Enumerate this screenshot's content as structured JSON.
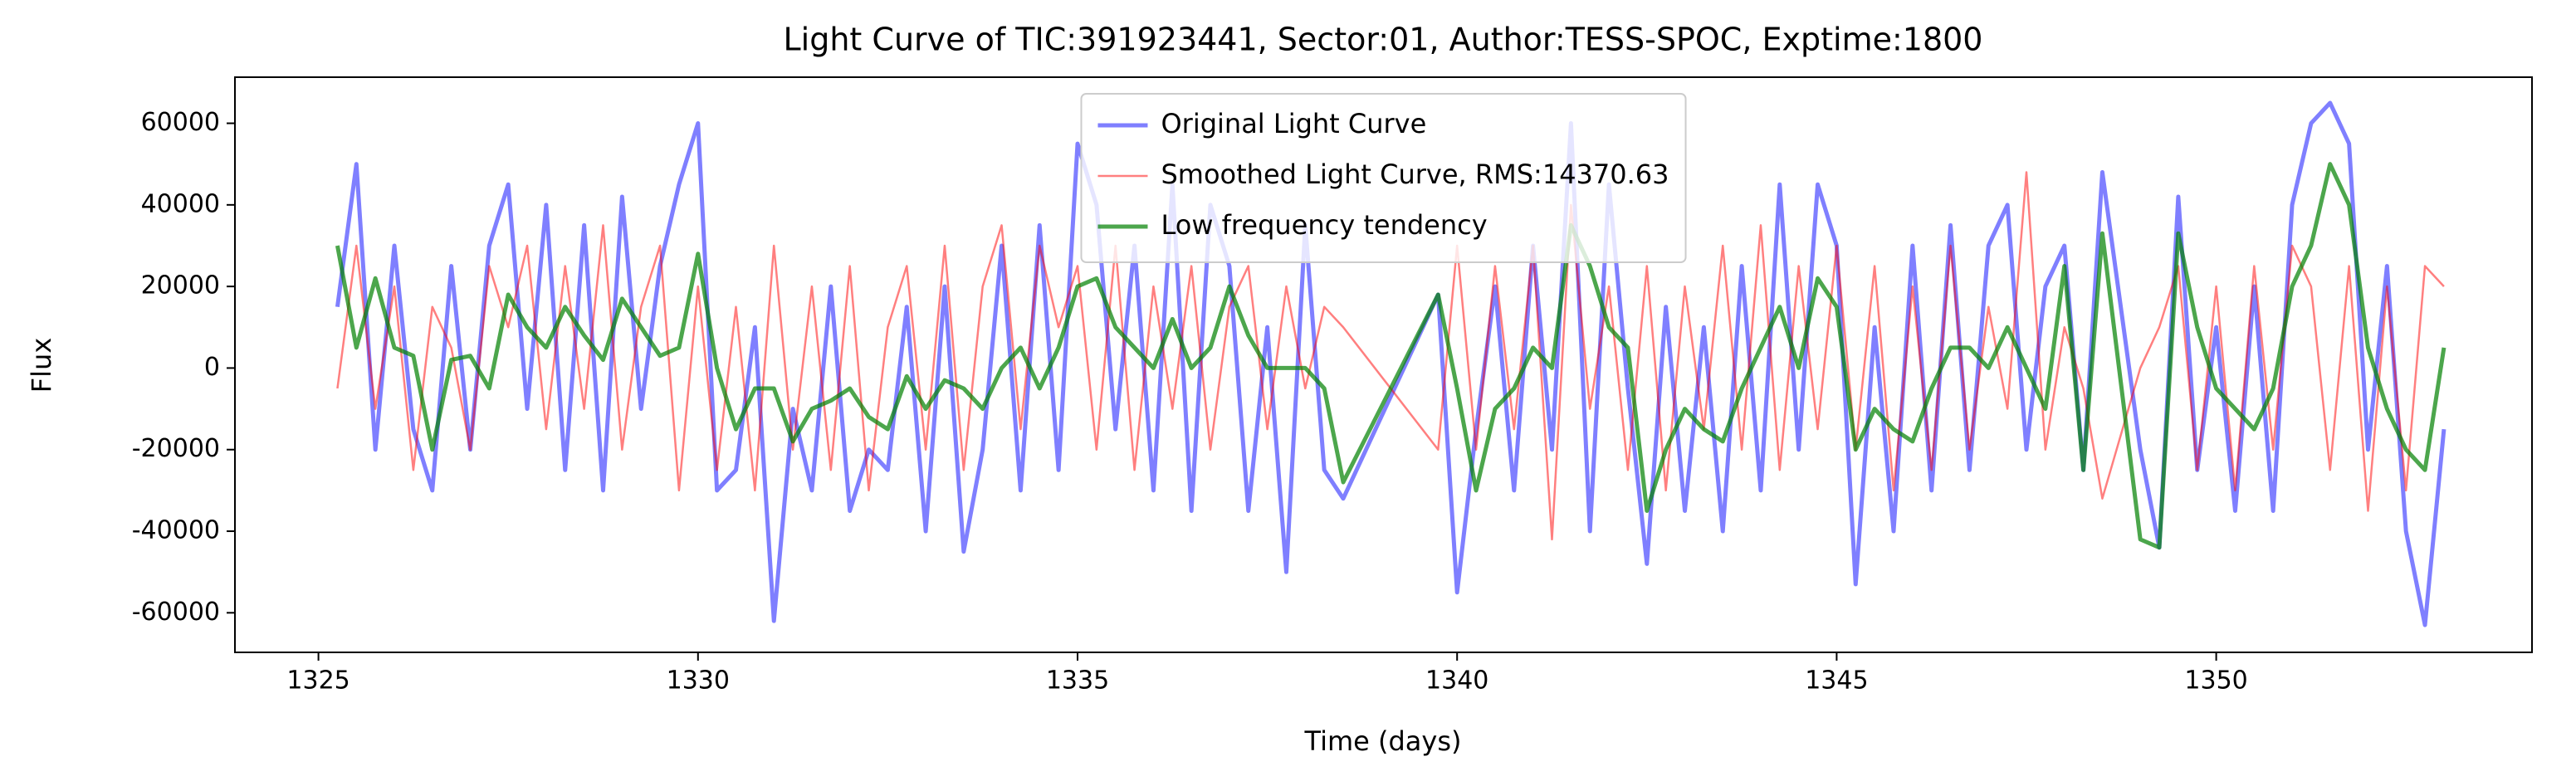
{
  "chart_data": {
    "type": "line",
    "title": "Light Curve of TIC:391923441, Sector:01, Author:TESS-SPOC, Exptime:1800",
    "x_label": "Time (days)",
    "y_label": "Flux",
    "x": [
      1325.25,
      1325.5,
      1325.75,
      1326,
      1326.25,
      1326.5,
      1326.75,
      1327,
      1327.25,
      1327.5,
      1327.75,
      1328,
      1328.25,
      1328.5,
      1328.75,
      1329,
      1329.25,
      1329.5,
      1329.75,
      1330,
      1330.25,
      1330.5,
      1330.75,
      1331,
      1331.25,
      1331.5,
      1331.75,
      1332,
      1332.25,
      1332.5,
      1332.75,
      1333,
      1333.25,
      1333.5,
      1333.75,
      1334,
      1334.25,
      1334.5,
      1334.75,
      1335,
      1335.25,
      1335.5,
      1335.75,
      1336,
      1336.25,
      1336.5,
      1336.75,
      1337,
      1337.25,
      1337.5,
      1337.75,
      1338,
      1338.25,
      1338.5,
      1339.75,
      1340,
      1340.25,
      1340.5,
      1340.75,
      1341,
      1341.25,
      1341.5,
      1341.75,
      1342,
      1342.25,
      1342.5,
      1342.75,
      1343,
      1343.25,
      1343.5,
      1343.75,
      1344,
      1344.25,
      1344.5,
      1344.75,
      1345,
      1345.25,
      1345.5,
      1345.75,
      1346,
      1346.25,
      1346.5,
      1346.75,
      1347,
      1347.25,
      1347.5,
      1347.75,
      1348,
      1348.25,
      1348.5,
      1349,
      1349.25,
      1349.5,
      1349.75,
      1350,
      1350.25,
      1350.5,
      1350.75,
      1351,
      1351.25,
      1351.5,
      1351.75,
      1352,
      1352.25,
      1352.5,
      1352.75,
      1353
    ],
    "series": [
      {
        "name": "Original Light Curve",
        "color": "#0000ff",
        "opacity": 0.5,
        "width": 5,
        "values": [
          15000,
          50000,
          -20000,
          30000,
          -15000,
          -30000,
          25000,
          -20000,
          30000,
          45000,
          -10000,
          40000,
          -25000,
          35000,
          -30000,
          42000,
          -10000,
          25000,
          45000,
          60000,
          -30000,
          -25000,
          10000,
          -62000,
          -10000,
          -30000,
          20000,
          -35000,
          -20000,
          -25000,
          15000,
          -40000,
          20000,
          -45000,
          -20000,
          30000,
          -30000,
          35000,
          -25000,
          55000,
          40000,
          -15000,
          30000,
          -30000,
          45000,
          -35000,
          40000,
          25000,
          -35000,
          10000,
          -50000,
          35000,
          -25000,
          -32000,
          18000,
          -55000,
          -15000,
          20000,
          -30000,
          30000,
          -20000,
          60000,
          -40000,
          45000,
          -5000,
          -48000,
          15000,
          -35000,
          10000,
          -40000,
          25000,
          -30000,
          45000,
          -20000,
          45000,
          30000,
          -53000,
          10000,
          -40000,
          30000,
          -30000,
          35000,
          -25000,
          30000,
          40000,
          -20000,
          20000,
          30000,
          -25000,
          48000,
          -20000,
          -44000,
          42000,
          -25000,
          10000,
          -35000,
          20000,
          -35000,
          40000,
          60000,
          65000,
          55000,
          -20000,
          25000,
          -40000,
          -63000,
          -15000
        ]
      },
      {
        "name": "Smoothed Light Curve, RMS:14370.63",
        "color": "#ff0000",
        "opacity": 0.5,
        "width": 2.5,
        "values": [
          -5000,
          30000,
          -10000,
          20000,
          -25000,
          15000,
          5000,
          -20000,
          25000,
          10000,
          30000,
          -15000,
          25000,
          -10000,
          35000,
          -20000,
          15000,
          30000,
          -30000,
          20000,
          -25000,
          15000,
          -30000,
          30000,
          -20000,
          20000,
          -25000,
          25000,
          -30000,
          10000,
          25000,
          -20000,
          30000,
          -25000,
          20000,
          35000,
          -15000,
          30000,
          10000,
          25000,
          -20000,
          30000,
          -25000,
          20000,
          -10000,
          25000,
          -20000,
          15000,
          25000,
          -15000,
          20000,
          -5000,
          15000,
          10000,
          -20000,
          30000,
          -20000,
          25000,
          -15000,
          30000,
          -42000,
          40000,
          -10000,
          20000,
          -25000,
          25000,
          -30000,
          20000,
          -15000,
          30000,
          -20000,
          35000,
          -25000,
          25000,
          -15000,
          30000,
          -20000,
          25000,
          -30000,
          20000,
          -25000,
          30000,
          -20000,
          15000,
          -10000,
          48000,
          -20000,
          10000,
          -5000,
          -32000,
          0,
          10000,
          25000,
          -25000,
          20000,
          -30000,
          25000,
          -20000,
          30000,
          20000,
          -25000,
          25000,
          -35000,
          20000,
          -30000,
          25000,
          20000
        ]
      },
      {
        "name": "Low frequency tendency",
        "color": "#008000",
        "opacity": 0.7,
        "width": 5,
        "values": [
          30000,
          5000,
          22000,
          5000,
          3000,
          -20000,
          2000,
          3000,
          -5000,
          18000,
          10000,
          5000,
          15000,
          8000,
          2000,
          17000,
          10000,
          3000,
          5000,
          28000,
          0,
          -15000,
          -5000,
          -5000,
          -18000,
          -10000,
          -8000,
          -5000,
          -12000,
          -15000,
          -2000,
          -10000,
          -3000,
          -5000,
          -10000,
          0,
          5000,
          -5000,
          5000,
          20000,
          22000,
          10000,
          5000,
          0,
          12000,
          0,
          5000,
          20000,
          8000,
          0,
          0,
          0,
          -5000,
          -28000,
          18000,
          -5000,
          -30000,
          -10000,
          -5000,
          5000,
          0,
          35000,
          25000,
          10000,
          5000,
          -35000,
          -20000,
          -10000,
          -15000,
          -18000,
          -5000,
          5000,
          15000,
          0,
          22000,
          15000,
          -20000,
          -10000,
          -15000,
          -18000,
          -5000,
          5000,
          5000,
          0,
          10000,
          0,
          -10000,
          25000,
          -25000,
          33000,
          -42000,
          -44000,
          33000,
          10000,
          -5000,
          -10000,
          -15000,
          -5000,
          20000,
          30000,
          50000,
          40000,
          5000,
          -10000,
          -20000,
          -25000,
          5000
        ]
      }
    ],
    "xlim": [
      1323.9,
      1354.16
    ],
    "ylim": [
      -69700,
      71300
    ],
    "xticks": [
      1325,
      1330,
      1335,
      1340,
      1345,
      1350
    ],
    "yticks": [
      -60000,
      -40000,
      -20000,
      0,
      20000,
      40000,
      60000
    ],
    "legend": "upper center"
  }
}
